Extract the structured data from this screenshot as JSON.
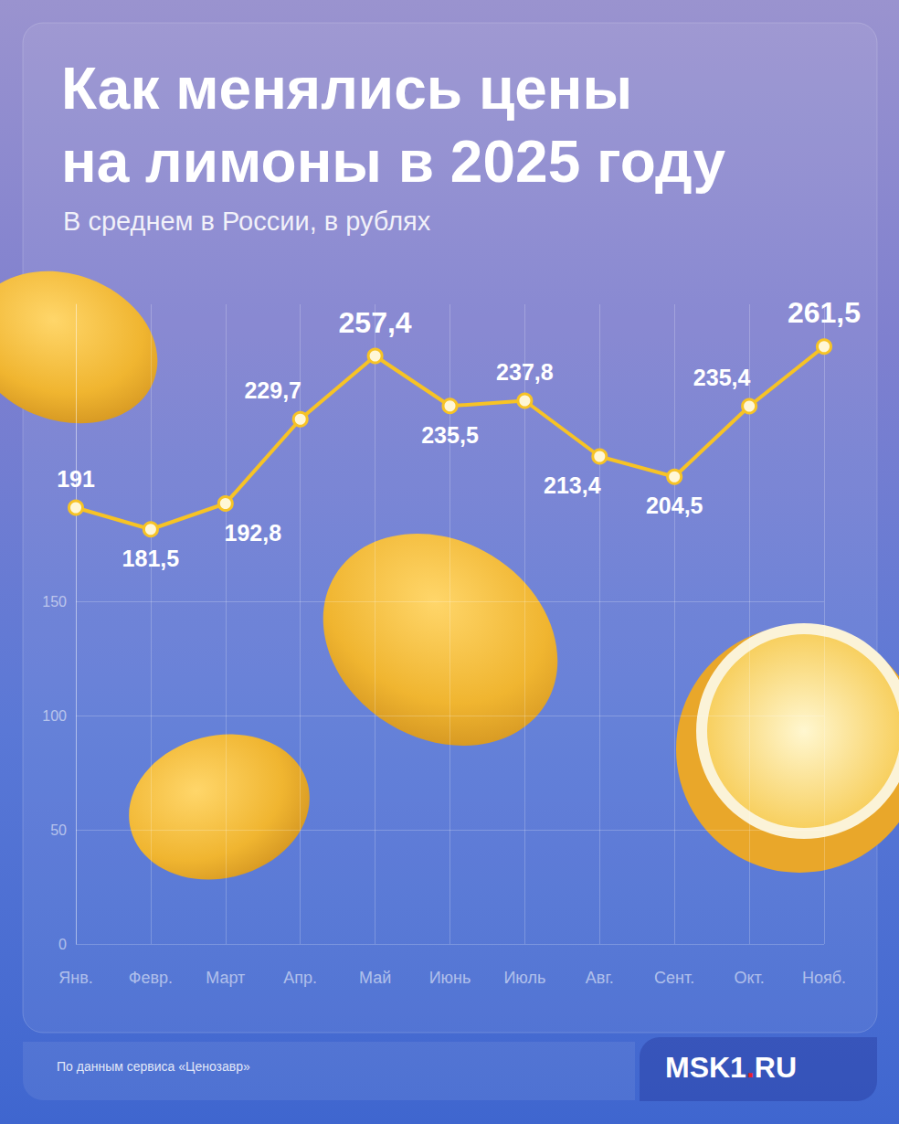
{
  "chart_data": {
    "type": "line",
    "title": "Как менялись цены\nна лимоны в 2025 году",
    "subtitle": "В среднем в России, в рублях",
    "source": "По данным сервиса «Ценозавр»",
    "brand": "MSK1.RU",
    "categories": [
      "Янв.",
      "Февр.",
      "Март",
      "Апр.",
      "Май",
      "Июнь",
      "Июль",
      "Авг.",
      "Сент.",
      "Окт.",
      "Нояб."
    ],
    "values": [
      191,
      181.5,
      192.8,
      229.7,
      257.4,
      235.5,
      237.8,
      213.4,
      204.5,
      235.4,
      261.5
    ],
    "value_labels": [
      "191",
      "181,5",
      "192,8",
      "229,7",
      "257,4",
      "235,5",
      "237,8",
      "213,4",
      "204,5",
      "235,4",
      "261,5"
    ],
    "color": "#f7c325",
    "marker": "circle",
    "ylim": [
      0,
      280
    ],
    "yticks": [
      0,
      50,
      100,
      150
    ],
    "grid": true,
    "data_labels": true
  }
}
